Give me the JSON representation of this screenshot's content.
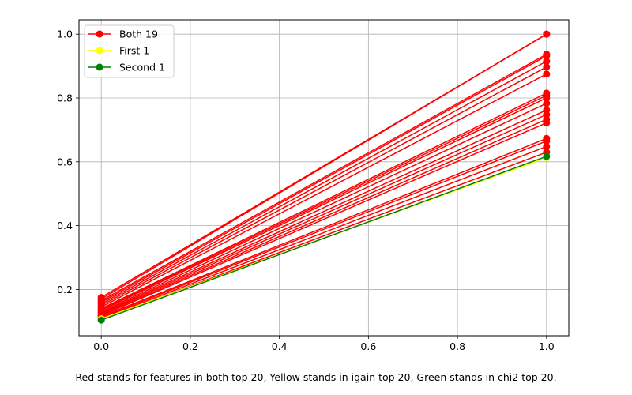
{
  "caption": "Red stands for features in both top 20, Yellow stands in igain top 20, Green stands in chi2 top 20.",
  "chart_data": {
    "type": "line",
    "grid": true,
    "legend_position": "top-left",
    "xlim": [
      -0.05,
      1.05
    ],
    "ylim": [
      0.055,
      1.045
    ],
    "xticks": [
      "0.0",
      "0.2",
      "0.4",
      "0.6",
      "0.8",
      "1.0"
    ],
    "yticks": [
      "0.2",
      "0.4",
      "0.6",
      "0.8",
      "1.0"
    ],
    "legend": [
      {
        "label": "Both 19",
        "color": "#ff0000"
      },
      {
        "label": "First 1",
        "color": "#ffff00"
      },
      {
        "label": "Second 1",
        "color": "#008000"
      }
    ],
    "series": [
      {
        "group": "Both 19",
        "color": "#ff0000",
        "points": [
          [
            0,
            0.175
          ],
          [
            1,
            1.0
          ]
        ]
      },
      {
        "group": "Both 19",
        "color": "#ff0000",
        "points": [
          [
            0,
            0.17
          ],
          [
            1,
            1.0
          ]
        ]
      },
      {
        "group": "Both 19",
        "color": "#ff0000",
        "points": [
          [
            0,
            0.165
          ],
          [
            1,
            0.937
          ]
        ]
      },
      {
        "group": "Both 19",
        "color": "#ff0000",
        "points": [
          [
            0,
            0.16
          ],
          [
            1,
            0.932
          ]
        ]
      },
      {
        "group": "Both 19",
        "color": "#ff0000",
        "points": [
          [
            0,
            0.155
          ],
          [
            1,
            0.915
          ]
        ]
      },
      {
        "group": "Both 19",
        "color": "#ff0000",
        "points": [
          [
            0,
            0.15
          ],
          [
            1,
            0.897
          ]
        ]
      },
      {
        "group": "Both 19",
        "color": "#ff0000",
        "points": [
          [
            0,
            0.145
          ],
          [
            1,
            0.875
          ]
        ]
      },
      {
        "group": "Both 19",
        "color": "#ff0000",
        "points": [
          [
            0,
            0.14
          ],
          [
            1,
            0.815
          ]
        ]
      },
      {
        "group": "Both 19",
        "color": "#ff0000",
        "points": [
          [
            0,
            0.137
          ],
          [
            1,
            0.808
          ]
        ]
      },
      {
        "group": "Both 19",
        "color": "#ff0000",
        "points": [
          [
            0,
            0.134
          ],
          [
            1,
            0.8
          ]
        ]
      },
      {
        "group": "Both 19",
        "color": "#ff0000",
        "points": [
          [
            0,
            0.13
          ],
          [
            1,
            0.783
          ]
        ]
      },
      {
        "group": "Both 19",
        "color": "#ff0000",
        "points": [
          [
            0,
            0.127
          ],
          [
            1,
            0.762
          ]
        ]
      },
      {
        "group": "Both 19",
        "color": "#ff0000",
        "points": [
          [
            0,
            0.124
          ],
          [
            1,
            0.748
          ]
        ]
      },
      {
        "group": "Both 19",
        "color": "#ff0000",
        "points": [
          [
            0,
            0.121
          ],
          [
            1,
            0.733
          ]
        ]
      },
      {
        "group": "Both 19",
        "color": "#ff0000",
        "points": [
          [
            0,
            0.118
          ],
          [
            1,
            0.722
          ]
        ]
      },
      {
        "group": "Both 19",
        "color": "#ff0000",
        "points": [
          [
            0,
            0.115
          ],
          [
            1,
            0.673
          ]
        ]
      },
      {
        "group": "Both 19",
        "color": "#ff0000",
        "points": [
          [
            0,
            0.112
          ],
          [
            1,
            0.665
          ]
        ]
      },
      {
        "group": "Both 19",
        "color": "#ff0000",
        "points": [
          [
            0,
            0.109
          ],
          [
            1,
            0.648
          ]
        ]
      },
      {
        "group": "Both 19",
        "color": "#ff0000",
        "points": [
          [
            0,
            0.106
          ],
          [
            1,
            0.63
          ]
        ]
      },
      {
        "group": "First 1",
        "color": "#ffff00",
        "points": [
          [
            0,
            0.108
          ],
          [
            1,
            0.613
          ]
        ]
      },
      {
        "group": "Second 1",
        "color": "#008000",
        "points": [
          [
            0,
            0.104
          ],
          [
            1,
            0.617
          ]
        ]
      }
    ]
  }
}
